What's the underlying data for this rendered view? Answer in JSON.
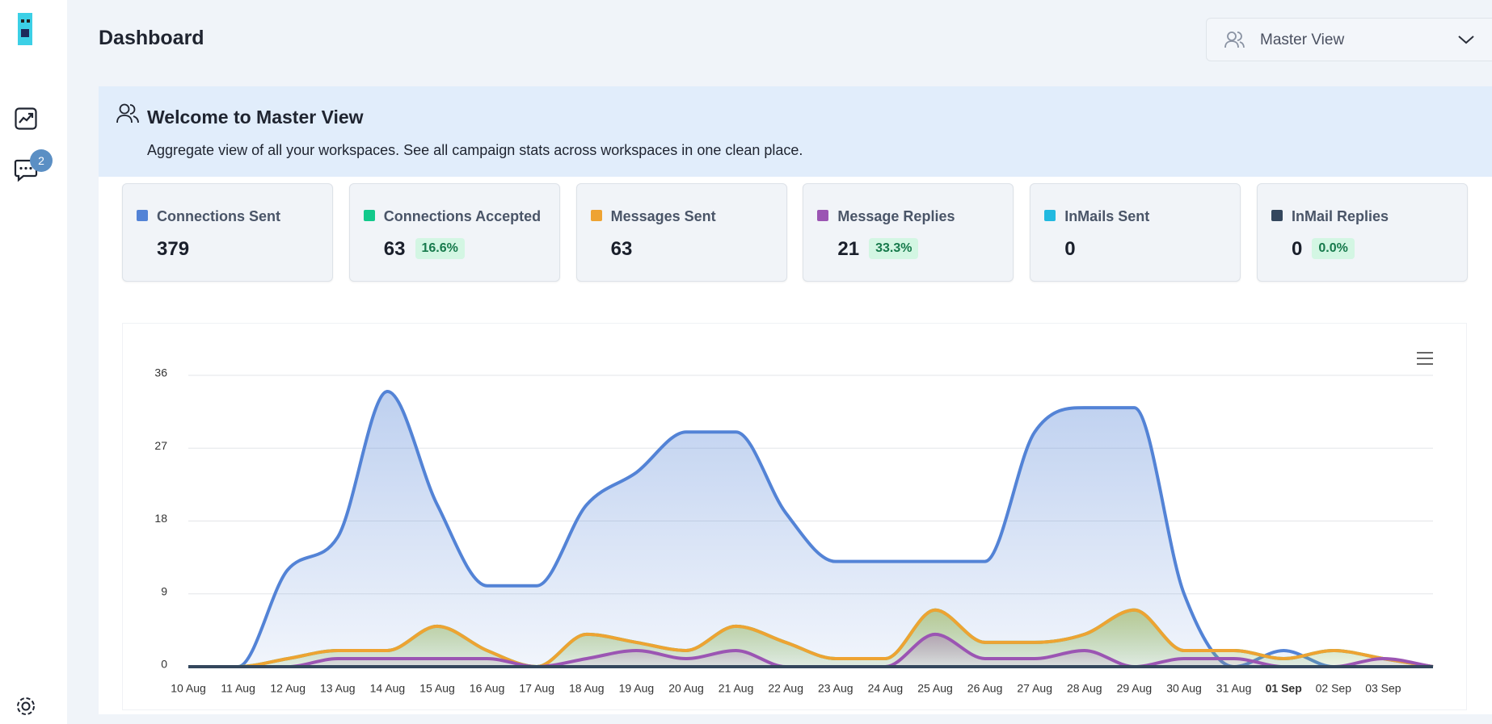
{
  "sidebar": {
    "badge": "2"
  },
  "header": {
    "title": "Dashboard",
    "view": "Master View"
  },
  "banner": {
    "title": "Welcome to Master View",
    "text": "Aggregate view of all your workspaces. See all campaign stats across workspaces in one clean place."
  },
  "stats": [
    {
      "value": "379"
    },
    {
      "value": "63",
      "rate": "16.6%"
    },
    {
      "value": "63"
    },
    {
      "value": "21",
      "rate": "33.3%"
    },
    {
      "value": "0"
    },
    {
      "value": "0",
      "rate": "0.0%"
    }
  ],
  "chart_data": {
    "type": "area",
    "categories": [
      "10 Aug",
      "11 Aug",
      "12 Aug",
      "13 Aug",
      "14 Aug",
      "15 Aug",
      "16 Aug",
      "17 Aug",
      "18 Aug",
      "19 Aug",
      "20 Aug",
      "21 Aug",
      "22 Aug",
      "23 Aug",
      "24 Aug",
      "25 Aug",
      "26 Aug",
      "27 Aug",
      "28 Aug",
      "29 Aug",
      "30 Aug",
      "31 Aug",
      "01 Sep",
      "02 Sep",
      "03 Sep",
      null
    ],
    "highlight_index": 22,
    "ylim": [
      0,
      36
    ],
    "yticks": [
      0,
      9,
      18,
      27,
      36
    ],
    "grid": true,
    "series": [
      {
        "name": "Connections Sent",
        "color": "#5383d6",
        "values": [
          0,
          0,
          12,
          16,
          34,
          20,
          10,
          10,
          20,
          24,
          29,
          29,
          19,
          13,
          13,
          13,
          13,
          29,
          32,
          32,
          9,
          0,
          2,
          0,
          0,
          0
        ]
      },
      {
        "name": "Connections Accepted",
        "color": "#12c98b",
        "values": [
          0,
          0,
          1,
          2,
          2,
          5,
          2,
          0,
          4,
          3,
          2,
          5,
          3,
          1,
          1,
          7,
          3,
          3,
          4,
          7,
          2,
          2,
          1,
          2,
          1,
          0
        ]
      },
      {
        "name": "Messages Sent",
        "color": "#eea332",
        "values": [
          0,
          0,
          1,
          2,
          2,
          5,
          2,
          0,
          4,
          3,
          2,
          5,
          3,
          1,
          1,
          7,
          3,
          3,
          4,
          7,
          2,
          2,
          1,
          2,
          1,
          0
        ]
      },
      {
        "name": "Message Replies",
        "color": "#9b55b3",
        "values": [
          0,
          0,
          0,
          1,
          1,
          1,
          1,
          0,
          1,
          2,
          1,
          2,
          0,
          0,
          0,
          4,
          1,
          1,
          2,
          0,
          1,
          1,
          0,
          0,
          1,
          0
        ]
      },
      {
        "name": "InMails Sent",
        "color": "#22b9e0",
        "values": [
          0,
          0,
          0,
          0,
          0,
          0,
          0,
          0,
          0,
          0,
          0,
          0,
          0,
          0,
          0,
          0,
          0,
          0,
          0,
          0,
          0,
          0,
          0,
          0,
          0,
          0
        ]
      },
      {
        "name": "InMail Replies",
        "color": "#34475d",
        "values": [
          0,
          0,
          0,
          0,
          0,
          0,
          0,
          0,
          0,
          0,
          0,
          0,
          0,
          0,
          0,
          0,
          0,
          0,
          0,
          0,
          0,
          0,
          0,
          0,
          0,
          0
        ]
      }
    ]
  }
}
